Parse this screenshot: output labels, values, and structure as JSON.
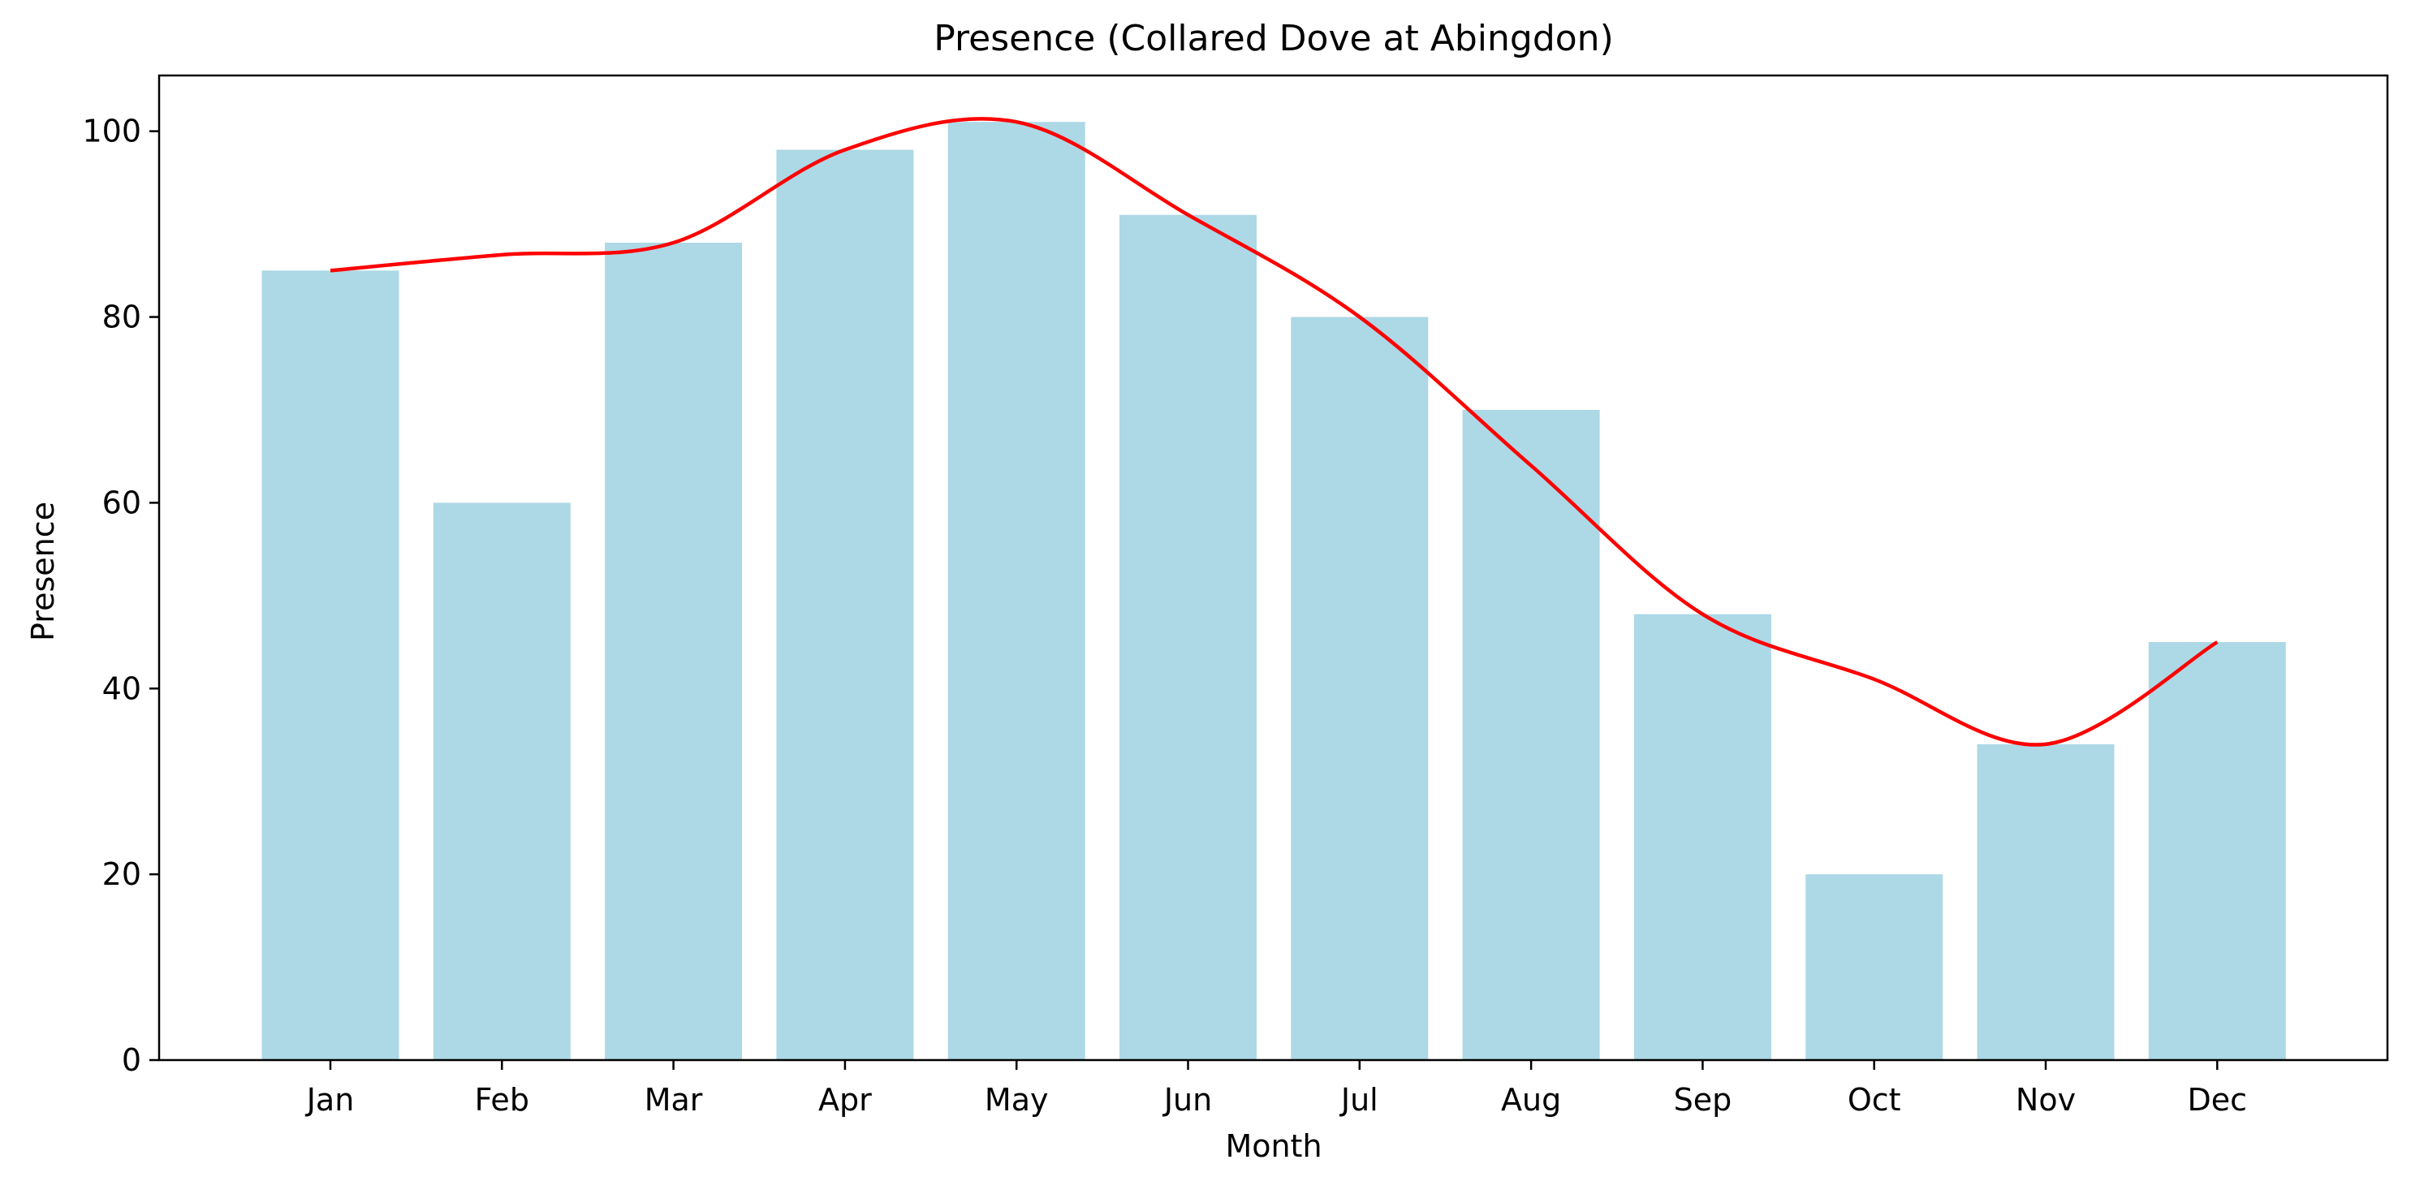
{
  "chart_data": {
    "type": "bar",
    "title": "Presence (Collared Dove at Abingdon)",
    "xlabel": "Month",
    "ylabel": "Presence",
    "categories": [
      "Jan",
      "Feb",
      "Mar",
      "Apr",
      "May",
      "Jun",
      "Jul",
      "Aug",
      "Sep",
      "Oct",
      "Nov",
      "Dec"
    ],
    "series": [
      {
        "type": "bar",
        "values": [
          85,
          60,
          88,
          98,
          101,
          91,
          80,
          70,
          48,
          20,
          34,
          45
        ],
        "color": "#add8e6"
      },
      {
        "type": "line",
        "curve": "smooth",
        "values": [
          85,
          86.7,
          88,
          98,
          101,
          91,
          80,
          64,
          48,
          41,
          34,
          45
        ],
        "color": "#ff0000"
      }
    ],
    "ylim": [
      0,
      106
    ],
    "yticks": [
      0,
      20,
      40,
      60,
      80,
      100
    ],
    "grid": false,
    "legend": "none"
  }
}
